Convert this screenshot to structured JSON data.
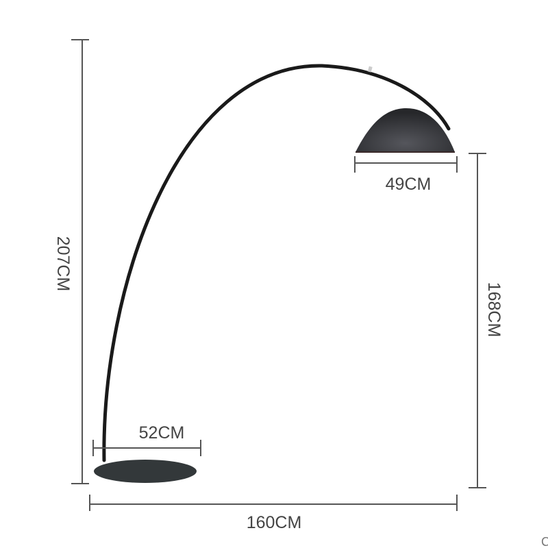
{
  "dimensions": {
    "total_height": "207CM",
    "shade_height": "168CM",
    "total_width": "160CM",
    "shade_diameter": "49CM",
    "base_diameter": "52CM"
  },
  "corner_fragment": "C",
  "colors": {
    "lamp": "#1a1a1a",
    "shade": "#3a3b3f",
    "base": "#33383a",
    "dimension_lines": "#555555",
    "text": "#444444"
  }
}
